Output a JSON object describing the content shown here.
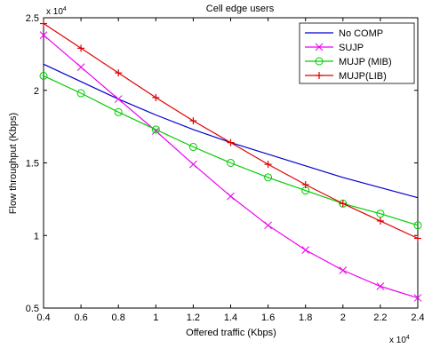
{
  "chart_data": {
    "type": "line",
    "title": "Cell edge users",
    "xlabel": "Offered traffic (Kbps)",
    "ylabel": "Flow throughput (Kbps)",
    "x_multiplier": "x 10",
    "x_multiplier_exp": "4",
    "y_multiplier": "x 10",
    "y_multiplier_exp": "4",
    "xlim": [
      0.4,
      2.4
    ],
    "ylim": [
      0.5,
      2.5
    ],
    "xticks": [
      0.4,
      0.6,
      0.8,
      1,
      1.2,
      1.4,
      1.6,
      1.8,
      2,
      2.2,
      2.4
    ],
    "xtick_labels": [
      "0.4",
      "0.6",
      "0.8",
      "1",
      "1.2",
      "1.4",
      "1.6",
      "1.8",
      "2",
      "2.2",
      "2.4"
    ],
    "yticks": [
      0.5,
      1,
      1.5,
      2,
      2.5
    ],
    "ytick_labels": [
      "0.5",
      "1",
      "1.5",
      "2",
      "2.5"
    ],
    "grid": false,
    "legend_position": "top-right",
    "x": [
      0.4,
      0.6,
      0.8,
      1.0,
      1.2,
      1.4,
      1.6,
      1.8,
      2.0,
      2.2,
      2.4
    ],
    "series": [
      {
        "name": "No COMP",
        "color": "#0000cc",
        "marker": "none",
        "values": [
          2.18,
          2.06,
          1.94,
          1.83,
          1.73,
          1.64,
          1.56,
          1.48,
          1.4,
          1.33,
          1.26
        ]
      },
      {
        "name": "SUJP",
        "color": "#ee00ee",
        "marker": "x",
        "values": [
          2.38,
          2.16,
          1.94,
          1.72,
          1.49,
          1.27,
          1.07,
          0.9,
          0.76,
          0.65,
          0.57
        ]
      },
      {
        "name": "MUJP (MIB)",
        "color": "#00cc00",
        "marker": "o",
        "values": [
          2.1,
          1.98,
          1.85,
          1.73,
          1.61,
          1.5,
          1.4,
          1.31,
          1.22,
          1.15,
          1.07
        ]
      },
      {
        "name": "MUJP(LIB)",
        "color": "#dd0000",
        "marker": "+",
        "values": [
          2.46,
          2.29,
          2.12,
          1.95,
          1.79,
          1.64,
          1.49,
          1.35,
          1.22,
          1.1,
          0.98
        ]
      }
    ]
  }
}
